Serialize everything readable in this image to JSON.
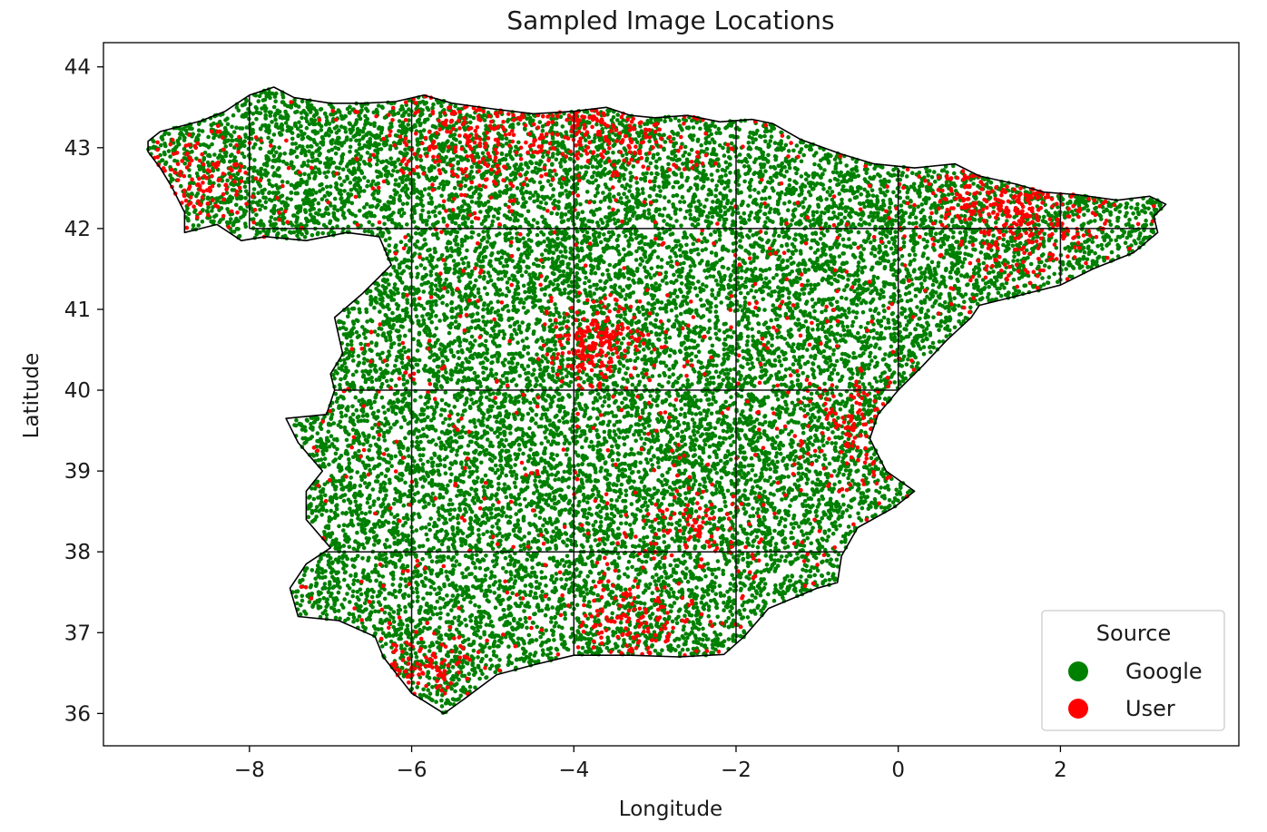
{
  "chart_data": {
    "type": "scatter",
    "title": "Sampled Image Locations",
    "xlabel": "Longitude",
    "ylabel": "Latitude",
    "xlim": [
      -9.8,
      4.2
    ],
    "ylim": [
      35.6,
      44.3
    ],
    "xticks": [
      -8,
      -6,
      -4,
      -2,
      0,
      2
    ],
    "xtick_labels": [
      "−8",
      "−6",
      "−4",
      "−2",
      "0",
      "2"
    ],
    "yticks": [
      36,
      37,
      38,
      39,
      40,
      41,
      42,
      43,
      44
    ],
    "ytick_labels": [
      "36",
      "37",
      "38",
      "39",
      "40",
      "41",
      "42",
      "43",
      "44"
    ],
    "grid": false,
    "legend": {
      "title": "Source",
      "placement": "bottom-right",
      "entries": [
        {
          "label": "Google",
          "color": "#008000"
        },
        {
          "label": "User",
          "color": "#ff0000"
        }
      ]
    },
    "series": [
      {
        "name": "Google",
        "color": "#008000",
        "approx_point_count": 16000,
        "distribution": "uniform across mainland Spain"
      },
      {
        "name": "User",
        "color": "#ff0000",
        "approx_point_count": 2000,
        "clusters": [
          {
            "lon": -3.7,
            "lat": 40.6,
            "spread": 0.35,
            "weight": 0.1
          },
          {
            "lon": -5.2,
            "lat": 43.2,
            "spread": 0.6,
            "weight": 0.12
          },
          {
            "lon": -3.5,
            "lat": 43.3,
            "spread": 0.5,
            "weight": 0.08
          },
          {
            "lon": 1.5,
            "lat": 42.3,
            "spread": 0.6,
            "weight": 0.16
          },
          {
            "lon": -3.4,
            "lat": 37.1,
            "spread": 0.4,
            "weight": 0.06
          },
          {
            "lon": -5.9,
            "lat": 36.6,
            "spread": 0.3,
            "weight": 0.04
          },
          {
            "lon": -8.7,
            "lat": 42.6,
            "spread": 0.4,
            "weight": 0.05
          },
          {
            "lon": -0.4,
            "lat": 39.5,
            "spread": 0.4,
            "weight": 0.05
          },
          {
            "lon": -2.6,
            "lat": 38.4,
            "spread": 0.4,
            "weight": 0.04
          }
        ]
      }
    ],
    "boundary": [
      [
        -9.25,
        42.95
      ],
      [
        -9.25,
        43.08
      ],
      [
        -9.1,
        43.2
      ],
      [
        -8.6,
        43.33
      ],
      [
        -8.3,
        43.45
      ],
      [
        -8.0,
        43.65
      ],
      [
        -7.7,
        43.75
      ],
      [
        -7.45,
        43.62
      ],
      [
        -7.0,
        43.55
      ],
      [
        -6.6,
        43.55
      ],
      [
        -6.2,
        43.57
      ],
      [
        -5.85,
        43.65
      ],
      [
        -5.5,
        43.55
      ],
      [
        -5.0,
        43.48
      ],
      [
        -4.5,
        43.42
      ],
      [
        -4.0,
        43.45
      ],
      [
        -3.6,
        43.5
      ],
      [
        -3.3,
        43.4
      ],
      [
        -3.0,
        43.37
      ],
      [
        -2.6,
        43.4
      ],
      [
        -2.2,
        43.32
      ],
      [
        -1.8,
        43.35
      ],
      [
        -1.55,
        43.3
      ],
      [
        -1.2,
        43.1
      ],
      [
        -0.7,
        42.92
      ],
      [
        -0.3,
        42.8
      ],
      [
        0.2,
        42.75
      ],
      [
        0.7,
        42.8
      ],
      [
        1.0,
        42.65
      ],
      [
        1.45,
        42.55
      ],
      [
        1.8,
        42.45
      ],
      [
        2.2,
        42.42
      ],
      [
        2.7,
        42.35
      ],
      [
        3.1,
        42.4
      ],
      [
        3.3,
        42.3
      ],
      [
        3.15,
        42.15
      ],
      [
        3.2,
        41.95
      ],
      [
        2.9,
        41.7
      ],
      [
        2.4,
        41.5
      ],
      [
        2.0,
        41.3
      ],
      [
        1.4,
        41.15
      ],
      [
        1.0,
        41.05
      ],
      [
        0.9,
        40.9
      ],
      [
        0.6,
        40.62
      ],
      [
        0.3,
        40.3
      ],
      [
        0.0,
        40.0
      ],
      [
        -0.25,
        39.7
      ],
      [
        -0.35,
        39.4
      ],
      [
        -0.15,
        39.0
      ],
      [
        0.2,
        38.75
      ],
      [
        -0.05,
        38.55
      ],
      [
        -0.5,
        38.3
      ],
      [
        -0.7,
        37.95
      ],
      [
        -0.75,
        37.62
      ],
      [
        -1.0,
        37.55
      ],
      [
        -1.6,
        37.3
      ],
      [
        -1.9,
        36.95
      ],
      [
        -2.15,
        36.73
      ],
      [
        -2.7,
        36.7
      ],
      [
        -3.3,
        36.72
      ],
      [
        -4.0,
        36.72
      ],
      [
        -4.5,
        36.6
      ],
      [
        -4.95,
        36.48
      ],
      [
        -5.35,
        36.18
      ],
      [
        -5.6,
        36.0
      ],
      [
        -6.0,
        36.25
      ],
      [
        -6.35,
        36.7
      ],
      [
        -6.45,
        36.95
      ],
      [
        -6.9,
        37.15
      ],
      [
        -7.4,
        37.2
      ],
      [
        -7.5,
        37.55
      ],
      [
        -7.3,
        37.85
      ],
      [
        -7.0,
        38.05
      ],
      [
        -7.3,
        38.4
      ],
      [
        -7.3,
        38.75
      ],
      [
        -7.1,
        39.0
      ],
      [
        -7.4,
        39.35
      ],
      [
        -7.55,
        39.65
      ],
      [
        -7.05,
        39.7
      ],
      [
        -6.95,
        40.0
      ],
      [
        -7.0,
        40.2
      ],
      [
        -6.85,
        40.45
      ],
      [
        -6.95,
        40.9
      ],
      [
        -6.6,
        41.2
      ],
      [
        -6.25,
        41.55
      ],
      [
        -6.4,
        41.9
      ],
      [
        -6.8,
        41.95
      ],
      [
        -7.3,
        41.85
      ],
      [
        -7.8,
        41.9
      ],
      [
        -8.1,
        41.85
      ],
      [
        -8.4,
        42.05
      ],
      [
        -8.8,
        41.95
      ],
      [
        -8.8,
        42.2
      ],
      [
        -8.95,
        42.5
      ],
      [
        -9.1,
        42.75
      ]
    ],
    "region_lines": [
      [
        [
          -8.0,
          42.0
        ],
        [
          -8.0,
          43.7
        ]
      ],
      [
        [
          -8.0,
          42.0
        ],
        [
          3.2,
          42.0
        ]
      ],
      [
        [
          -6.0,
          36.2
        ],
        [
          -6.0,
          43.6
        ]
      ],
      [
        [
          -4.0,
          36.7
        ],
        [
          -4.0,
          43.45
        ]
      ],
      [
        [
          -2.0,
          36.75
        ],
        [
          -2.0,
          43.35
        ]
      ],
      [
        [
          0.0,
          40.0
        ],
        [
          0.0,
          42.75
        ]
      ],
      [
        [
          2.0,
          41.3
        ],
        [
          2.0,
          42.45
        ]
      ],
      [
        [
          -7.0,
          40.0
        ],
        [
          0.0,
          40.0
        ]
      ],
      [
        [
          -7.3,
          38.0
        ],
        [
          -0.6,
          38.0
        ]
      ]
    ]
  }
}
